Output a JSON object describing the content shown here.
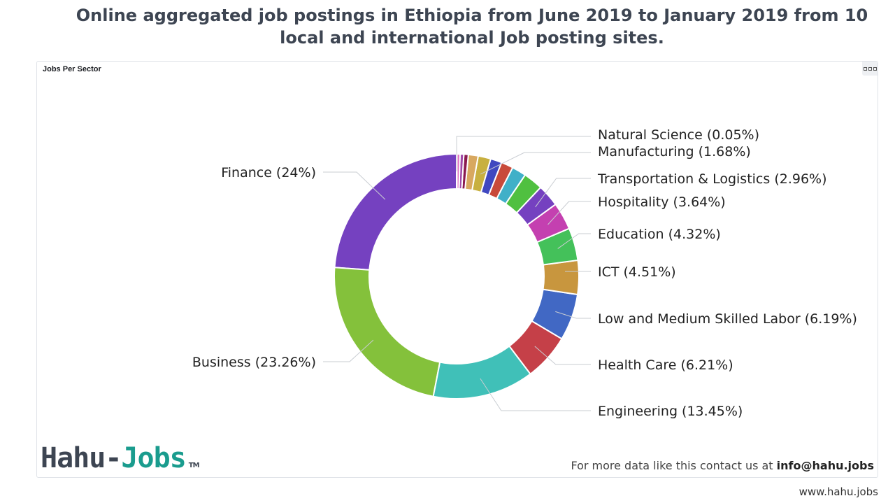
{
  "page": {
    "title": "Online aggregated job postings in Ethiopia from June 2019 to January 2019 from 10 local and international Job posting sites."
  },
  "panel": {
    "title": "Jobs Per Sector",
    "menu_icon": "ellipsis-icon"
  },
  "branding": {
    "logo_part1": "Hahu-",
    "logo_part2": "Jobs",
    "logo_tm": "TM",
    "contact_prefix": "For more data like this contact us at ",
    "contact_email": "info@hahu.jobs",
    "website": "www.hahu.jobs"
  },
  "chart_data": {
    "type": "pie",
    "title": "Jobs Per Sector",
    "donut": true,
    "slices": [
      {
        "name": "Finance",
        "value": 24,
        "label": "Finance (24%)",
        "color": "#7541c0",
        "labeled": true
      },
      {
        "name": "Business",
        "value": 23.26,
        "label": "Business (23.26%)",
        "color": "#84c13b",
        "labeled": true
      },
      {
        "name": "Engineering",
        "value": 13.45,
        "label": "Engineering (13.45%)",
        "color": "#40c0b8",
        "labeled": true
      },
      {
        "name": "Health Care",
        "value": 6.21,
        "label": "Health Care (6.21%)",
        "color": "#c54048",
        "labeled": true
      },
      {
        "name": "Low and Medium Skilled Labor",
        "value": 6.19,
        "label": "Low and Medium Skilled Labor (6.19%)",
        "color": "#4168c4",
        "labeled": true
      },
      {
        "name": "ICT",
        "value": 4.51,
        "label": "ICT (4.51%)",
        "color": "#c8963e",
        "labeled": true
      },
      {
        "name": "Education",
        "value": 4.32,
        "label": "Education (4.32%)",
        "color": "#44c15a",
        "labeled": true
      },
      {
        "name": "Hospitality",
        "value": 3.64,
        "label": "Hospitality (3.64%)",
        "color": "#c440b0",
        "labeled": true
      },
      {
        "name": "Transportation & Logistics",
        "value": 2.96,
        "label": "Transportation & Logistics (2.96%)",
        "color": "#7541c0",
        "labeled": true
      },
      {
        "name": "",
        "value": 2.6,
        "label": "",
        "color": "#50c040",
        "labeled": false
      },
      {
        "name": "",
        "value": 1.9,
        "label": "",
        "color": "#40b0c8",
        "labeled": false
      },
      {
        "name": "",
        "value": 1.6,
        "label": "",
        "color": "#c84a3a",
        "labeled": false
      },
      {
        "name": "",
        "value": 1.5,
        "label": "",
        "color": "#4048c0",
        "labeled": false
      },
      {
        "name": "Manufacturing",
        "value": 1.68,
        "label": "Manufacturing (1.68%)",
        "color": "#c8b040",
        "labeled": true
      },
      {
        "name": "",
        "value": 1.3,
        "label": "",
        "color": "#d8a860",
        "labeled": false
      },
      {
        "name": "",
        "value": 0.6,
        "label": "",
        "color": "#8a1a50",
        "labeled": false
      },
      {
        "name": "",
        "value": 0.5,
        "label": "",
        "color": "#a04aa8",
        "labeled": false
      },
      {
        "name": "",
        "value": 0.4,
        "label": "",
        "color": "#e070c0",
        "labeled": false
      },
      {
        "name": "Natural Science",
        "value": 0.05,
        "label": "Natural Science (0.05%)",
        "color": "#c8c8c8",
        "labeled": true
      }
    ]
  }
}
